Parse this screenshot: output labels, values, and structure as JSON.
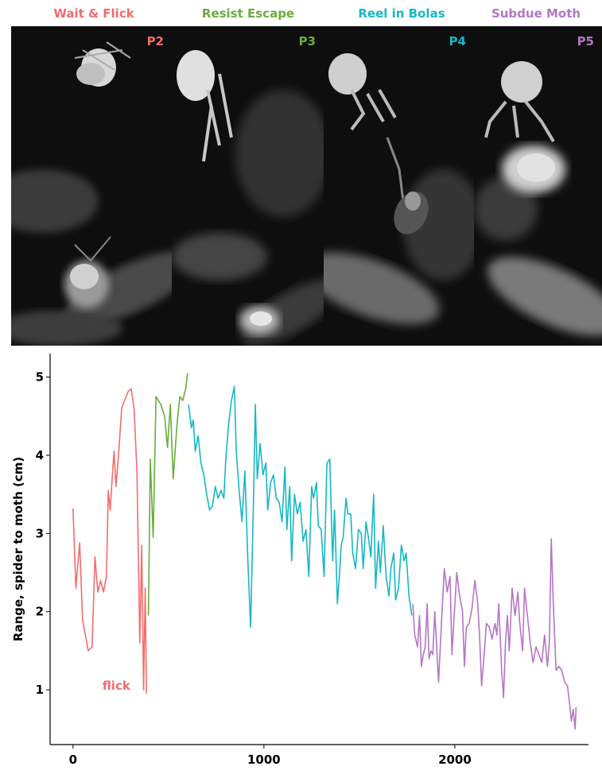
{
  "phases": [
    {
      "title": "Wait & Flick",
      "panel_label": "P2",
      "color": "#f26d6d"
    },
    {
      "title": "Resist Escape",
      "panel_label": "P3",
      "color": "#6aac3d"
    },
    {
      "title": "Reel in Bolas",
      "panel_label": "P4",
      "color": "#16b8c4"
    },
    {
      "title": "Subdue Moth",
      "panel_label": "P5",
      "color": "#b476c4"
    }
  ],
  "chart_data": {
    "type": "line",
    "xlabel": "Time (ms)",
    "ylabel": "Range, spider to moth (cm)",
    "xlim": [
      -120,
      2700
    ],
    "ylim": [
      0.3,
      5.3
    ],
    "xticks": [
      0,
      1000,
      2000
    ],
    "yticks": [
      1,
      2,
      3,
      4,
      5
    ],
    "grid": false,
    "annotation": {
      "text": "flick",
      "x": 300,
      "y": 1.0
    },
    "series": [
      {
        "phase": "Wait & Flick",
        "color": "#f26d6d",
        "points": [
          [
            0,
            3.32
          ],
          [
            15,
            2.3
          ],
          [
            35,
            2.88
          ],
          [
            50,
            1.9
          ],
          [
            80,
            1.5
          ],
          [
            100,
            1.55
          ],
          [
            115,
            2.7
          ],
          [
            130,
            2.25
          ],
          [
            145,
            2.4
          ],
          [
            160,
            2.25
          ],
          [
            175,
            2.45
          ],
          [
            185,
            3.55
          ],
          [
            195,
            3.3
          ],
          [
            205,
            3.7
          ],
          [
            215,
            4.05
          ],
          [
            225,
            3.6
          ],
          [
            240,
            4.05
          ],
          [
            255,
            4.6
          ],
          [
            270,
            4.7
          ],
          [
            290,
            4.82
          ],
          [
            305,
            4.85
          ],
          [
            320,
            4.6
          ],
          [
            335,
            3.8
          ],
          [
            350,
            1.6
          ],
          [
            360,
            2.85
          ],
          [
            370,
            1.0
          ],
          [
            378,
            2.3
          ],
          [
            385,
            0.95
          ]
        ]
      },
      {
        "phase": "Resist Escape",
        "color": "#6aac3d",
        "points": [
          [
            395,
            1.95
          ],
          [
            405,
            3.95
          ],
          [
            420,
            2.95
          ],
          [
            435,
            4.75
          ],
          [
            460,
            4.65
          ],
          [
            480,
            4.5
          ],
          [
            495,
            4.1
          ],
          [
            510,
            4.65
          ],
          [
            525,
            3.7
          ],
          [
            545,
            4.4
          ],
          [
            560,
            4.75
          ],
          [
            575,
            4.7
          ],
          [
            590,
            4.85
          ],
          [
            600,
            5.05
          ]
        ]
      },
      {
        "phase": "Reel in Bolas",
        "color": "#16b8c4",
        "points": [
          [
            605,
            4.65
          ],
          [
            620,
            4.35
          ],
          [
            630,
            4.45
          ],
          [
            640,
            4.05
          ],
          [
            655,
            4.25
          ],
          [
            670,
            3.9
          ],
          [
            685,
            3.75
          ],
          [
            700,
            3.5
          ],
          [
            715,
            3.3
          ],
          [
            730,
            3.35
          ],
          [
            745,
            3.6
          ],
          [
            760,
            3.45
          ],
          [
            775,
            3.55
          ],
          [
            790,
            3.45
          ],
          [
            800,
            3.95
          ],
          [
            815,
            4.4
          ],
          [
            830,
            4.7
          ],
          [
            845,
            4.88
          ],
          [
            855,
            4.05
          ],
          [
            870,
            3.55
          ],
          [
            885,
            3.15
          ],
          [
            900,
            3.8
          ],
          [
            915,
            2.7
          ],
          [
            930,
            1.8
          ],
          [
            945,
            3.4
          ],
          [
            955,
            4.65
          ],
          [
            965,
            3.7
          ],
          [
            980,
            4.15
          ],
          [
            995,
            3.75
          ],
          [
            1010,
            3.9
          ],
          [
            1020,
            3.3
          ],
          [
            1035,
            3.65
          ],
          [
            1050,
            3.75
          ],
          [
            1065,
            3.45
          ],
          [
            1080,
            3.4
          ],
          [
            1095,
            3.15
          ],
          [
            1110,
            3.85
          ],
          [
            1120,
            3.05
          ],
          [
            1135,
            3.6
          ],
          [
            1145,
            2.65
          ],
          [
            1160,
            3.5
          ],
          [
            1175,
            3.25
          ],
          [
            1190,
            3.4
          ],
          [
            1205,
            2.9
          ],
          [
            1220,
            3.05
          ],
          [
            1235,
            2.45
          ],
          [
            1250,
            3.6
          ],
          [
            1260,
            3.45
          ],
          [
            1275,
            3.65
          ],
          [
            1285,
            3.1
          ],
          [
            1300,
            3.05
          ],
          [
            1315,
            2.45
          ],
          [
            1330,
            3.9
          ],
          [
            1345,
            3.95
          ],
          [
            1360,
            2.65
          ],
          [
            1370,
            3.3
          ],
          [
            1385,
            2.1
          ],
          [
            1395,
            2.45
          ],
          [
            1405,
            2.85
          ],
          [
            1415,
            2.95
          ],
          [
            1430,
            3.45
          ],
          [
            1440,
            3.25
          ],
          [
            1455,
            3.25
          ],
          [
            1465,
            2.75
          ],
          [
            1480,
            2.55
          ],
          [
            1495,
            3.05
          ],
          [
            1510,
            3.0
          ],
          [
            1520,
            2.55
          ],
          [
            1535,
            3.15
          ],
          [
            1550,
            2.9
          ],
          [
            1560,
            2.7
          ],
          [
            1575,
            3.5
          ],
          [
            1585,
            2.3
          ],
          [
            1600,
            2.9
          ],
          [
            1610,
            2.5
          ],
          [
            1625,
            3.1
          ],
          [
            1640,
            2.45
          ],
          [
            1655,
            2.2
          ],
          [
            1665,
            2.55
          ],
          [
            1680,
            2.75
          ],
          [
            1690,
            2.15
          ],
          [
            1705,
            2.3
          ],
          [
            1720,
            2.85
          ],
          [
            1735,
            2.65
          ],
          [
            1745,
            2.75
          ],
          [
            1760,
            2.2
          ],
          [
            1775,
            1.95
          ]
        ]
      },
      {
        "phase": "Subdue Moth",
        "color": "#b476c4",
        "points": [
          [
            1780,
            2.1
          ],
          [
            1790,
            1.7
          ],
          [
            1805,
            1.55
          ],
          [
            1815,
            1.95
          ],
          [
            1825,
            1.3
          ],
          [
            1835,
            1.45
          ],
          [
            1845,
            1.55
          ],
          [
            1855,
            2.1
          ],
          [
            1865,
            1.4
          ],
          [
            1875,
            1.5
          ],
          [
            1885,
            1.45
          ],
          [
            1895,
            2.0
          ],
          [
            1905,
            1.55
          ],
          [
            1915,
            1.1
          ],
          [
            1930,
            1.85
          ],
          [
            1945,
            2.55
          ],
          [
            1960,
            2.25
          ],
          [
            1975,
            2.45
          ],
          [
            1985,
            1.45
          ],
          [
            1995,
            1.9
          ],
          [
            2010,
            2.5
          ],
          [
            2025,
            2.2
          ],
          [
            2040,
            2.0
          ],
          [
            2050,
            1.3
          ],
          [
            2060,
            1.8
          ],
          [
            2075,
            1.85
          ],
          [
            2090,
            2.05
          ],
          [
            2105,
            2.4
          ],
          [
            2120,
            2.1
          ],
          [
            2130,
            1.65
          ],
          [
            2140,
            1.05
          ],
          [
            2155,
            1.5
          ],
          [
            2165,
            1.85
          ],
          [
            2180,
            1.8
          ],
          [
            2195,
            1.65
          ],
          [
            2210,
            1.85
          ],
          [
            2220,
            1.7
          ],
          [
            2230,
            2.1
          ],
          [
            2245,
            1.25
          ],
          [
            2255,
            0.9
          ],
          [
            2265,
            1.6
          ],
          [
            2275,
            1.95
          ],
          [
            2285,
            1.5
          ],
          [
            2300,
            2.3
          ],
          [
            2315,
            1.95
          ],
          [
            2330,
            2.25
          ],
          [
            2340,
            1.85
          ],
          [
            2355,
            1.5
          ],
          [
            2365,
            2.3
          ],
          [
            2380,
            1.95
          ],
          [
            2395,
            1.6
          ],
          [
            2410,
            1.35
          ],
          [
            2425,
            1.55
          ],
          [
            2440,
            1.45
          ],
          [
            2455,
            1.35
          ],
          [
            2470,
            1.7
          ],
          [
            2485,
            1.3
          ],
          [
            2495,
            1.6
          ],
          [
            2505,
            2.93
          ],
          [
            2515,
            2.15
          ],
          [
            2530,
            1.25
          ],
          [
            2545,
            1.3
          ],
          [
            2560,
            1.25
          ],
          [
            2575,
            1.1
          ],
          [
            2590,
            1.05
          ],
          [
            2600,
            0.85
          ],
          [
            2610,
            0.6
          ],
          [
            2620,
            0.75
          ],
          [
            2630,
            0.5
          ],
          [
            2635,
            0.78
          ]
        ]
      }
    ]
  }
}
